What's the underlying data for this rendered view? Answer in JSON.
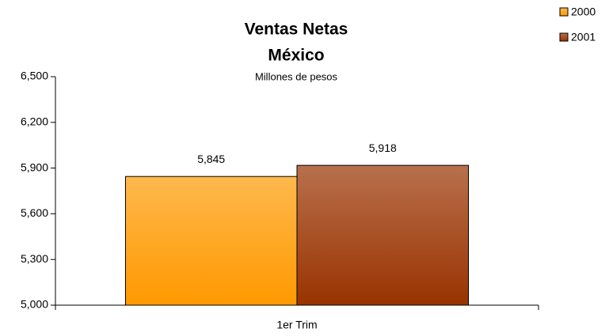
{
  "chart_data": {
    "type": "bar",
    "title": [
      "Ventas Netas",
      "México"
    ],
    "subtitle": "Millones de pesos",
    "categories": [
      "1er Trim"
    ],
    "series": [
      {
        "name": "2000",
        "color": "#ff9900",
        "values": [
          5845
        ],
        "value_labels": [
          "5,845"
        ]
      },
      {
        "name": "2001",
        "color": "#993300",
        "values": [
          5918
        ],
        "value_labels": [
          "5,918"
        ]
      }
    ],
    "ylim": [
      5000,
      6500
    ],
    "yticks": [
      {
        "value": 5000,
        "label": "5,000"
      },
      {
        "value": 5300,
        "label": "5,300"
      },
      {
        "value": 5600,
        "label": "5,600"
      },
      {
        "value": 5900,
        "label": "5,900"
      },
      {
        "value": 6200,
        "label": "6,200"
      },
      {
        "value": 6500,
        "label": "6,500"
      }
    ],
    "grid": false,
    "legend": "top-right"
  }
}
